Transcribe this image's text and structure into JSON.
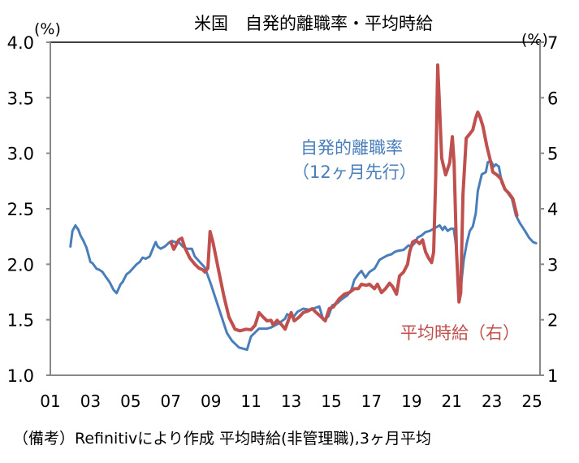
{
  "chart_data": {
    "type": "line",
    "title": "米国　自発的離職率・平均時給",
    "y_left_unit": "(%)",
    "y_right_unit": "(%)",
    "ylim_left": [
      1.0,
      4.0
    ],
    "ylim_right": [
      1,
      7
    ],
    "xlim": [
      2001,
      2025.4
    ],
    "grid": false,
    "left_ticks": [
      "1.0",
      "1.5",
      "2.0",
      "2.5",
      "3.0",
      "3.5",
      "4.0"
    ],
    "right_ticks": [
      "1",
      "2",
      "3",
      "4",
      "5",
      "6",
      "7"
    ],
    "x_ticks": [
      "01",
      "03",
      "05",
      "07",
      "09",
      "11",
      "13",
      "15",
      "17",
      "19",
      "21",
      "23",
      "25"
    ],
    "series": [
      {
        "name": "自発的離職率",
        "name_line2": "（12ヶ月先行）",
        "axis": "left",
        "color": "#4a7ebb",
        "points": [
          [
            2002.0,
            2.16
          ],
          [
            2002.1,
            2.3
          ],
          [
            2002.25,
            2.35
          ],
          [
            2002.4,
            2.31
          ],
          [
            2002.5,
            2.26
          ],
          [
            2002.65,
            2.21
          ],
          [
            2002.8,
            2.15
          ],
          [
            2003.0,
            2.02
          ],
          [
            2003.1,
            2.01
          ],
          [
            2003.3,
            1.96
          ],
          [
            2003.45,
            1.95
          ],
          [
            2003.6,
            1.93
          ],
          [
            2003.75,
            1.89
          ],
          [
            2003.95,
            1.84
          ],
          [
            2004.15,
            1.77
          ],
          [
            2004.3,
            1.74
          ],
          [
            2004.5,
            1.82
          ],
          [
            2004.6,
            1.84
          ],
          [
            2004.8,
            1.91
          ],
          [
            2004.95,
            1.93
          ],
          [
            2005.1,
            1.96
          ],
          [
            2005.3,
            2.0
          ],
          [
            2005.45,
            2.02
          ],
          [
            2005.6,
            2.06
          ],
          [
            2005.75,
            2.05
          ],
          [
            2005.95,
            2.07
          ],
          [
            2006.15,
            2.16
          ],
          [
            2006.25,
            2.2
          ],
          [
            2006.35,
            2.16
          ],
          [
            2006.5,
            2.14
          ],
          [
            2006.7,
            2.16
          ],
          [
            2006.95,
            2.2
          ],
          [
            2007.06,
            2.21
          ],
          [
            2007.2,
            2.2
          ],
          [
            2007.4,
            2.2
          ],
          [
            2007.6,
            2.16
          ],
          [
            2007.8,
            2.14
          ],
          [
            2008.05,
            2.14
          ],
          [
            2008.2,
            2.07
          ],
          [
            2008.45,
            2.02
          ],
          [
            2008.7,
            1.97
          ],
          [
            2009.0,
            1.82
          ],
          [
            2009.4,
            1.6
          ],
          [
            2009.8,
            1.38
          ],
          [
            2010.05,
            1.31
          ],
          [
            2010.4,
            1.25
          ],
          [
            2010.8,
            1.23
          ],
          [
            2011.0,
            1.35
          ],
          [
            2011.4,
            1.42
          ],
          [
            2011.8,
            1.42
          ],
          [
            2012.0,
            1.43
          ],
          [
            2012.4,
            1.47
          ],
          [
            2012.7,
            1.51
          ],
          [
            2012.8,
            1.55
          ],
          [
            2013.1,
            1.52
          ],
          [
            2013.3,
            1.57
          ],
          [
            2013.6,
            1.6
          ],
          [
            2013.9,
            1.59
          ],
          [
            2014.1,
            1.6
          ],
          [
            2014.4,
            1.62
          ],
          [
            2014.6,
            1.5
          ],
          [
            2014.85,
            1.53
          ],
          [
            2015.05,
            1.63
          ],
          [
            2015.3,
            1.65
          ],
          [
            2015.55,
            1.69
          ],
          [
            2015.8,
            1.72
          ],
          [
            2016.0,
            1.77
          ],
          [
            2016.15,
            1.86
          ],
          [
            2016.35,
            1.91
          ],
          [
            2016.5,
            1.94
          ],
          [
            2016.7,
            1.88
          ],
          [
            2016.9,
            1.93
          ],
          [
            2017.15,
            1.96
          ],
          [
            2017.25,
            1.99
          ],
          [
            2017.4,
            2.04
          ],
          [
            2017.6,
            2.06
          ],
          [
            2017.8,
            2.08
          ],
          [
            2018.0,
            2.09
          ],
          [
            2018.15,
            2.11
          ],
          [
            2018.3,
            2.12
          ],
          [
            2018.6,
            2.13
          ],
          [
            2018.85,
            2.17
          ],
          [
            2019.0,
            2.16
          ],
          [
            2019.15,
            2.19
          ],
          [
            2019.3,
            2.24
          ],
          [
            2019.5,
            2.26
          ],
          [
            2019.7,
            2.29
          ],
          [
            2019.9,
            2.3
          ],
          [
            2020.2,
            2.33
          ],
          [
            2020.4,
            2.35
          ],
          [
            2020.55,
            2.31
          ],
          [
            2020.65,
            2.34
          ],
          [
            2020.8,
            2.3
          ],
          [
            2020.95,
            2.32
          ],
          [
            2021.1,
            2.32
          ],
          [
            2021.2,
            2.19
          ],
          [
            2021.4,
            1.7
          ],
          [
            2021.6,
            2.04
          ],
          [
            2021.75,
            2.19
          ],
          [
            2021.9,
            2.3
          ],
          [
            2022.05,
            2.34
          ],
          [
            2022.2,
            2.46
          ],
          [
            2022.3,
            2.66
          ],
          [
            2022.5,
            2.81
          ],
          [
            2022.7,
            2.83
          ],
          [
            2022.8,
            2.92
          ],
          [
            2022.95,
            2.93
          ],
          [
            2023.1,
            2.88
          ],
          [
            2023.2,
            2.9
          ],
          [
            2023.35,
            2.88
          ],
          [
            2023.5,
            2.73
          ],
          [
            2023.8,
            2.64
          ],
          [
            2024.0,
            2.59
          ],
          [
            2024.2,
            2.44
          ],
          [
            2024.4,
            2.37
          ],
          [
            2024.65,
            2.3
          ],
          [
            2024.85,
            2.24
          ],
          [
            2025.05,
            2.2
          ],
          [
            2025.2,
            2.19
          ]
        ]
      },
      {
        "name": "平均時給（右）",
        "axis": "right",
        "color": "#c0504d",
        "points": [
          [
            2007.0,
            3.4
          ],
          [
            2007.15,
            3.27
          ],
          [
            2007.4,
            3.44
          ],
          [
            2007.55,
            3.47
          ],
          [
            2007.7,
            3.3
          ],
          [
            2007.95,
            3.11
          ],
          [
            2008.2,
            3.0
          ],
          [
            2008.4,
            2.93
          ],
          [
            2008.6,
            2.9
          ],
          [
            2008.7,
            2.86
          ],
          [
            2008.85,
            2.93
          ],
          [
            2008.96,
            3.59
          ],
          [
            2009.1,
            3.4
          ],
          [
            2009.4,
            2.86
          ],
          [
            2009.65,
            2.42
          ],
          [
            2009.9,
            2.05
          ],
          [
            2010.2,
            1.83
          ],
          [
            2010.45,
            1.8
          ],
          [
            2010.75,
            1.83
          ],
          [
            2011.0,
            1.82
          ],
          [
            2011.2,
            1.9
          ],
          [
            2011.4,
            2.13
          ],
          [
            2011.6,
            2.05
          ],
          [
            2011.8,
            1.98
          ],
          [
            2012.0,
            1.99
          ],
          [
            2012.1,
            1.91
          ],
          [
            2012.3,
            1.99
          ],
          [
            2012.55,
            1.9
          ],
          [
            2012.7,
            1.83
          ],
          [
            2013.0,
            2.13
          ],
          [
            2013.15,
            1.98
          ],
          [
            2013.4,
            2.05
          ],
          [
            2013.6,
            2.13
          ],
          [
            2013.85,
            2.16
          ],
          [
            2014.05,
            2.2
          ],
          [
            2014.25,
            2.13
          ],
          [
            2014.5,
            2.05
          ],
          [
            2014.7,
            1.98
          ],
          [
            2014.9,
            2.2
          ],
          [
            2015.1,
            2.23
          ],
          [
            2015.4,
            2.38
          ],
          [
            2015.65,
            2.46
          ],
          [
            2015.9,
            2.49
          ],
          [
            2016.15,
            2.56
          ],
          [
            2016.35,
            2.56
          ],
          [
            2016.5,
            2.64
          ],
          [
            2016.75,
            2.62
          ],
          [
            2016.9,
            2.64
          ],
          [
            2017.15,
            2.56
          ],
          [
            2017.3,
            2.64
          ],
          [
            2017.5,
            2.49
          ],
          [
            2017.7,
            2.56
          ],
          [
            2017.9,
            2.66
          ],
          [
            2018.05,
            2.6
          ],
          [
            2018.25,
            2.46
          ],
          [
            2018.4,
            2.79
          ],
          [
            2018.6,
            2.86
          ],
          [
            2018.8,
            3.0
          ],
          [
            2018.9,
            3.22
          ],
          [
            2019.05,
            3.4
          ],
          [
            2019.2,
            3.43
          ],
          [
            2019.4,
            3.37
          ],
          [
            2019.55,
            3.44
          ],
          [
            2019.7,
            3.22
          ],
          [
            2019.85,
            3.11
          ],
          [
            2020.0,
            3.03
          ],
          [
            2020.1,
            3.22
          ],
          [
            2020.2,
            4.54
          ],
          [
            2020.3,
            6.59
          ],
          [
            2020.4,
            5.8
          ],
          [
            2020.5,
            4.91
          ],
          [
            2020.7,
            4.61
          ],
          [
            2020.9,
            4.83
          ],
          [
            2021.03,
            5.3
          ],
          [
            2021.12,
            4.83
          ],
          [
            2021.24,
            3.22
          ],
          [
            2021.36,
            2.32
          ],
          [
            2021.45,
            2.49
          ],
          [
            2021.56,
            4.25
          ],
          [
            2021.72,
            5.27
          ],
          [
            2021.9,
            5.35
          ],
          [
            2022.05,
            5.42
          ],
          [
            2022.2,
            5.64
          ],
          [
            2022.3,
            5.74
          ],
          [
            2022.42,
            5.64
          ],
          [
            2022.55,
            5.49
          ],
          [
            2022.75,
            5.13
          ],
          [
            2022.95,
            4.83
          ],
          [
            2023.05,
            4.66
          ],
          [
            2023.25,
            4.61
          ],
          [
            2023.45,
            4.54
          ],
          [
            2023.65,
            4.35
          ],
          [
            2023.85,
            4.28
          ],
          [
            2024.05,
            4.18
          ],
          [
            2024.25,
            3.88
          ]
        ]
      }
    ]
  },
  "footer": {
    "note": "（備考）Refinitivにより作成 平均時給(非管理職),3ヶ月平均"
  }
}
